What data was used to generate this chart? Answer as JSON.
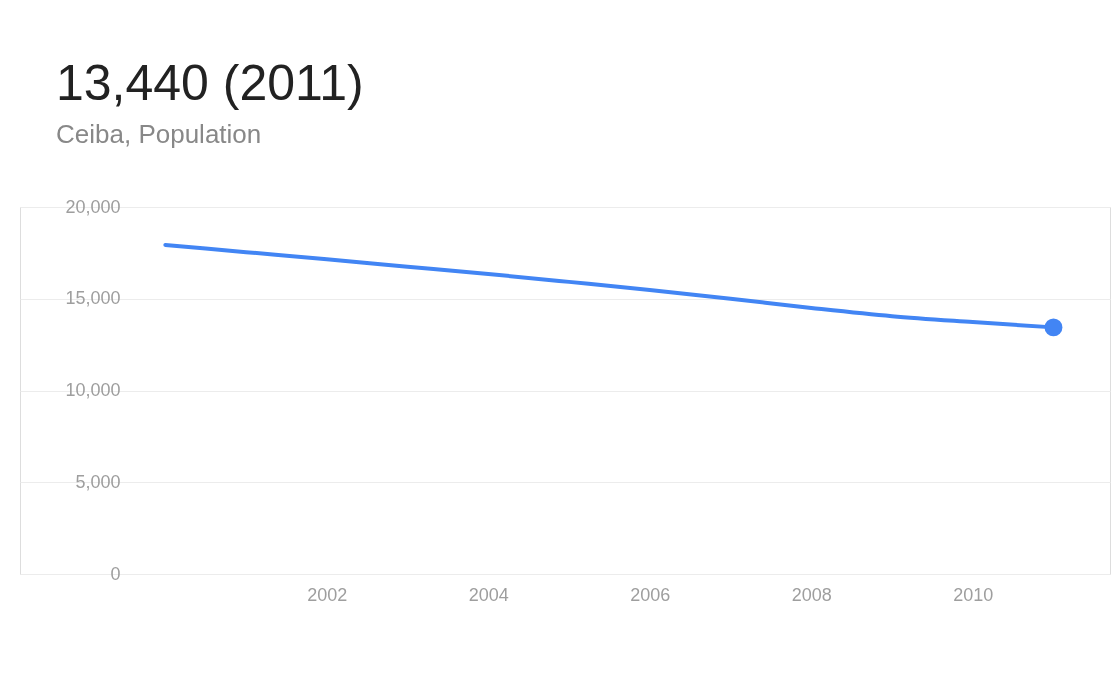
{
  "chart_data": {
    "type": "line",
    "title": "13,440 (2011)",
    "subtitle": "Ceiba, Population",
    "series": [
      {
        "color": "#4285f4",
        "x": [
          2000,
          2001,
          2002,
          2003,
          2004,
          2005,
          2006,
          2007,
          2008,
          2009,
          2010,
          2011
        ],
        "values": [
          17930,
          17540,
          17150,
          16750,
          16350,
          15920,
          15480,
          15000,
          14500,
          14050,
          13730,
          13440
        ]
      },
      {
        "type": "scatter",
        "color": "#4285f4",
        "x": [
          2011
        ],
        "values": [
          13440
        ]
      }
    ],
    "xlim": [
      1998.2,
      2011.7
    ],
    "xticks": [
      2002,
      2004,
      2006,
      2008,
      2010
    ],
    "ylim": [
      0,
      20000
    ],
    "yticks": [
      {
        "value": 0,
        "label": "0"
      },
      {
        "value": 5000,
        "label": "5,000"
      },
      {
        "value": 10000,
        "label": "10,000"
      },
      {
        "value": 15000,
        "label": "15,000"
      },
      {
        "value": 20000,
        "label": "20,000"
      }
    ],
    "grid": "y",
    "line_style": "solid"
  }
}
